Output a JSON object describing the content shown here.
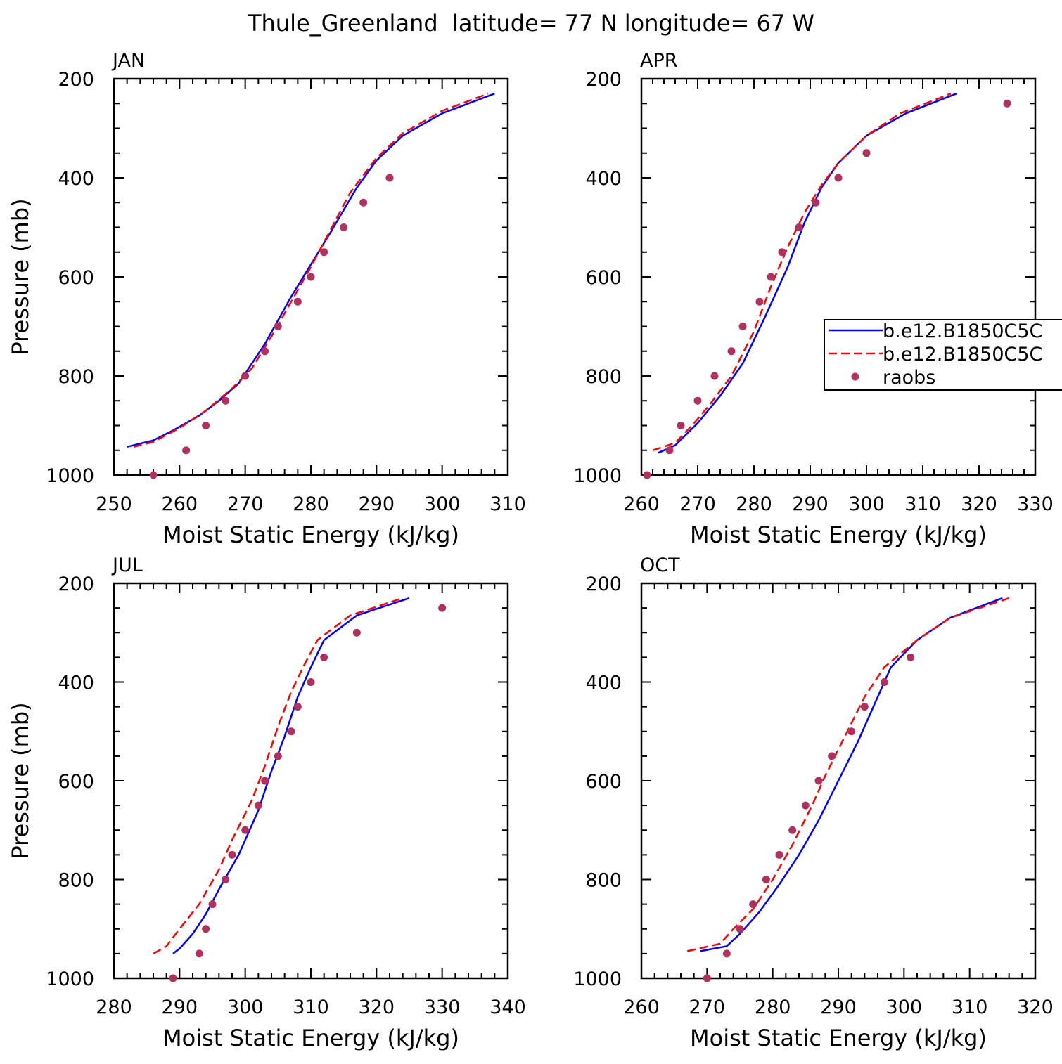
{
  "title": "Thule_Greenland  latitude= 77 N longitude= 67 W",
  "colors": {
    "model_a": "#0000ff",
    "model_b": "#ff0000",
    "obs": "#b03060",
    "axis": "#000000"
  },
  "legend": {
    "entries": [
      {
        "label": "b.e12.B1850C5C",
        "style": "solid-line",
        "color": "#0000ff"
      },
      {
        "label": "b.e12.B1850C5C",
        "style": "dashed-line",
        "color": "#ff0000"
      },
      {
        "label": "raobs",
        "style": "marker",
        "color": "#b03060"
      }
    ]
  },
  "chart_data": [
    {
      "type": "line",
      "panel": "JAN",
      "xlabel": "Moist Static Energy (kJ/kg)",
      "ylabel": "Pressure (mb)",
      "xlim": [
        250,
        310
      ],
      "ylim": [
        1000,
        200
      ],
      "y_inverted": true,
      "xticks": [
        250,
        260,
        270,
        280,
        290,
        300,
        310
      ],
      "yticks": [
        200,
        400,
        600,
        800,
        1000
      ],
      "series": [
        {
          "name": "b.e12.B1850C5C",
          "style": "solid",
          "color": "#0000ff",
          "points": [
            [
              252,
              943
            ],
            [
              256,
              930
            ],
            [
              259,
              910
            ],
            [
              263,
              880
            ],
            [
              266,
              850
            ],
            [
              269,
              815
            ],
            [
              273,
              735
            ],
            [
              277,
              640
            ],
            [
              280,
              575
            ],
            [
              283,
              510
            ],
            [
              287,
              420
            ],
            [
              290,
              365
            ],
            [
              294,
              315
            ],
            [
              300,
              270
            ],
            [
              308,
              230
            ]
          ]
        },
        {
          "name": "b.e12.B1850C5C",
          "style": "dashed",
          "color": "#ff0000",
          "points": [
            [
              253,
              943
            ],
            [
              256,
              933
            ],
            [
              260,
              905
            ],
            [
              264,
              870
            ],
            [
              268,
              825
            ],
            [
              271,
              785
            ],
            [
              274,
              720
            ],
            [
              277,
              650
            ],
            [
              280,
              580
            ],
            [
              283,
              505
            ],
            [
              286,
              430
            ],
            [
              290,
              360
            ],
            [
              294,
              310
            ],
            [
              300,
              265
            ],
            [
              307,
              230
            ]
          ]
        },
        {
          "name": "raobs",
          "style": "marker",
          "color": "#b03060",
          "points": [
            [
              256,
              1000
            ],
            [
              261,
              950
            ],
            [
              264,
              900
            ],
            [
              267,
              850
            ],
            [
              270,
              800
            ],
            [
              273,
              750
            ],
            [
              275,
              700
            ],
            [
              278,
              650
            ],
            [
              280,
              600
            ],
            [
              282,
              550
            ],
            [
              285,
              500
            ],
            [
              288,
              450
            ],
            [
              292,
              400
            ]
          ]
        }
      ]
    },
    {
      "type": "line",
      "panel": "APR",
      "xlabel": "Moist Static Energy (kJ/kg)",
      "ylabel": "",
      "xlim": [
        260,
        330
      ],
      "ylim": [
        1000,
        200
      ],
      "y_inverted": true,
      "xticks": [
        260,
        270,
        280,
        290,
        300,
        310,
        320,
        330
      ],
      "yticks": [
        200,
        400,
        600,
        800,
        1000
      ],
      "series": [
        {
          "name": "b.e12.B1850C5C",
          "style": "solid",
          "color": "#0000ff",
          "points": [
            [
              263,
              955
            ],
            [
              266,
              940
            ],
            [
              270,
              895
            ],
            [
              274,
              840
            ],
            [
              278,
              775
            ],
            [
              282,
              680
            ],
            [
              286,
              580
            ],
            [
              289,
              490
            ],
            [
              292,
              420
            ],
            [
              295,
              370
            ],
            [
              300,
              315
            ],
            [
              307,
              270
            ],
            [
              316,
              230
            ]
          ]
        },
        {
          "name": "b.e12.B1850C5C",
          "style": "dashed",
          "color": "#ff0000",
          "points": [
            [
              262,
              950
            ],
            [
              266,
              935
            ],
            [
              269,
              900
            ],
            [
              272,
              860
            ],
            [
              276,
              800
            ],
            [
              280,
              710
            ],
            [
              283,
              620
            ],
            [
              286,
              540
            ],
            [
              289,
              470
            ],
            [
              292,
              415
            ],
            [
              295,
              370
            ],
            [
              300,
              315
            ],
            [
              306,
              270
            ],
            [
              315,
              230
            ]
          ]
        },
        {
          "name": "raobs",
          "style": "marker",
          "color": "#b03060",
          "points": [
            [
              261,
              1000
            ],
            [
              265,
              950
            ],
            [
              267,
              900
            ],
            [
              270,
              850
            ],
            [
              273,
              800
            ],
            [
              276,
              750
            ],
            [
              278,
              700
            ],
            [
              281,
              650
            ],
            [
              283,
              600
            ],
            [
              285,
              550
            ],
            [
              288,
              500
            ],
            [
              291,
              450
            ],
            [
              295,
              400
            ],
            [
              300,
              350
            ],
            [
              325,
              250
            ]
          ]
        }
      ]
    },
    {
      "type": "line",
      "panel": "JUL",
      "xlabel": "Moist Static Energy (kJ/kg)",
      "ylabel": "Pressure (mb)",
      "xlim": [
        280,
        340
      ],
      "ylim": [
        1000,
        200
      ],
      "y_inverted": true,
      "xticks": [
        280,
        290,
        300,
        310,
        320,
        330,
        340
      ],
      "yticks": [
        200,
        400,
        600,
        800,
        1000
      ],
      "series": [
        {
          "name": "b.e12.B1850C5C",
          "style": "solid",
          "color": "#0000ff",
          "points": [
            [
              289,
              950
            ],
            [
              290,
              940
            ],
            [
              292,
              910
            ],
            [
              294,
              870
            ],
            [
              296,
              820
            ],
            [
              299,
              750
            ],
            [
              302,
              660
            ],
            [
              304,
              580
            ],
            [
              306,
              510
            ],
            [
              308,
              430
            ],
            [
              310,
              370
            ],
            [
              312,
              315
            ],
            [
              317,
              265
            ],
            [
              325,
              230
            ]
          ]
        },
        {
          "name": "b.e12.B1850C5C",
          "style": "dashed",
          "color": "#ff0000",
          "points": [
            [
              286,
              950
            ],
            [
              288,
              935
            ],
            [
              290,
              900
            ],
            [
              293,
              850
            ],
            [
              296,
              780
            ],
            [
              298,
              720
            ],
            [
              301,
              640
            ],
            [
              303,
              570
            ],
            [
              305,
              490
            ],
            [
              307,
              420
            ],
            [
              309,
              365
            ],
            [
              311,
              315
            ],
            [
              316,
              265
            ],
            [
              324,
              230
            ]
          ]
        },
        {
          "name": "raobs",
          "style": "marker",
          "color": "#b03060",
          "points": [
            [
              289,
              1000
            ],
            [
              293,
              950
            ],
            [
              294,
              900
            ],
            [
              295,
              850
            ],
            [
              297,
              800
            ],
            [
              298,
              750
            ],
            [
              300,
              700
            ],
            [
              302,
              650
            ],
            [
              303,
              600
            ],
            [
              305,
              550
            ],
            [
              307,
              500
            ],
            [
              308,
              450
            ],
            [
              310,
              400
            ],
            [
              312,
              350
            ],
            [
              317,
              300
            ],
            [
              330,
              250
            ]
          ]
        }
      ]
    },
    {
      "type": "line",
      "panel": "OCT",
      "xlabel": "Moist Static Energy (kJ/kg)",
      "ylabel": "",
      "xlim": [
        260,
        320
      ],
      "ylim": [
        1000,
        200
      ],
      "y_inverted": true,
      "xticks": [
        260,
        270,
        280,
        290,
        300,
        310,
        320
      ],
      "yticks": [
        200,
        400,
        600,
        800,
        1000
      ],
      "series": [
        {
          "name": "b.e12.B1850C5C",
          "style": "solid",
          "color": "#0000ff",
          "points": [
            [
              269,
              945
            ],
            [
              273,
              935
            ],
            [
              275,
              910
            ],
            [
              278,
              865
            ],
            [
              281,
              810
            ],
            [
              284,
              750
            ],
            [
              287,
              680
            ],
            [
              290,
              600
            ],
            [
              293,
              520
            ],
            [
              295,
              460
            ],
            [
              298,
              370
            ],
            [
              302,
              315
            ],
            [
              307,
              270
            ],
            [
              315,
              230
            ]
          ]
        },
        {
          "name": "b.e12.B1850C5C",
          "style": "dashed",
          "color": "#ff0000",
          "points": [
            [
              267,
              945
            ],
            [
              272,
              930
            ],
            [
              274,
              900
            ],
            [
              277,
              860
            ],
            [
              280,
              800
            ],
            [
              283,
              730
            ],
            [
              286,
              650
            ],
            [
              288,
              590
            ],
            [
              291,
              510
            ],
            [
              294,
              430
            ],
            [
              297,
              370
            ],
            [
              302,
              315
            ],
            [
              307,
              270
            ],
            [
              316,
              230
            ]
          ]
        },
        {
          "name": "raobs",
          "style": "marker",
          "color": "#b03060",
          "points": [
            [
              270,
              1000
            ],
            [
              273,
              950
            ],
            [
              275,
              900
            ],
            [
              277,
              850
            ],
            [
              279,
              800
            ],
            [
              281,
              750
            ],
            [
              283,
              700
            ],
            [
              285,
              650
            ],
            [
              287,
              600
            ],
            [
              289,
              550
            ],
            [
              292,
              500
            ],
            [
              294,
              450
            ],
            [
              297,
              400
            ],
            [
              301,
              350
            ]
          ]
        }
      ]
    }
  ]
}
